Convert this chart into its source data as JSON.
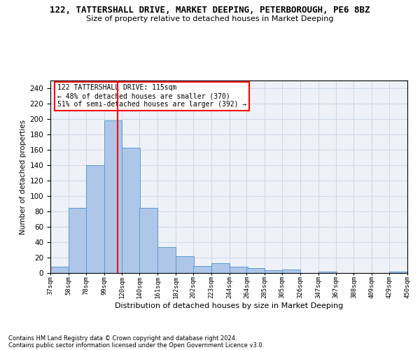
{
  "title": "122, TATTERSHALL DRIVE, MARKET DEEPING, PETERBOROUGH, PE6 8BZ",
  "subtitle": "Size of property relative to detached houses in Market Deeping",
  "xlabel": "Distribution of detached houses by size in Market Deeping",
  "ylabel": "Number of detached properties",
  "bar_color": "#aec6e8",
  "bar_edge_color": "#5b9bd5",
  "grid_color": "#d0d8e8",
  "background_color": "#eef2f8",
  "vline_x": 115,
  "vline_color": "red",
  "annotation_text": "122 TATTERSHALL DRIVE: 115sqm\n← 48% of detached houses are smaller (370)\n51% of semi-detached houses are larger (392) →",
  "annotation_box_color": "white",
  "annotation_box_edgecolor": "red",
  "bins_left_edges": [
    37,
    58,
    78,
    99,
    120,
    140,
    161,
    182,
    202,
    223,
    244,
    264,
    285,
    305,
    326,
    347,
    367,
    388,
    409,
    429
  ],
  "bin_width": 21,
  "bar_heights": [
    8,
    85,
    140,
    198,
    163,
    85,
    34,
    22,
    9,
    13,
    8,
    6,
    4,
    5,
    0,
    2,
    0,
    0,
    0,
    2
  ],
  "tick_labels": [
    "37sqm",
    "58sqm",
    "78sqm",
    "99sqm",
    "120sqm",
    "140sqm",
    "161sqm",
    "182sqm",
    "202sqm",
    "223sqm",
    "244sqm",
    "264sqm",
    "285sqm",
    "305sqm",
    "326sqm",
    "347sqm",
    "367sqm",
    "388sqm",
    "409sqm",
    "429sqm",
    "450sqm"
  ],
  "ylim": [
    0,
    250
  ],
  "yticks": [
    0,
    20,
    40,
    60,
    80,
    100,
    120,
    140,
    160,
    180,
    200,
    220,
    240
  ],
  "footnote1": "Contains HM Land Registry data © Crown copyright and database right 2024.",
  "footnote2": "Contains public sector information licensed under the Open Government Licence v3.0."
}
